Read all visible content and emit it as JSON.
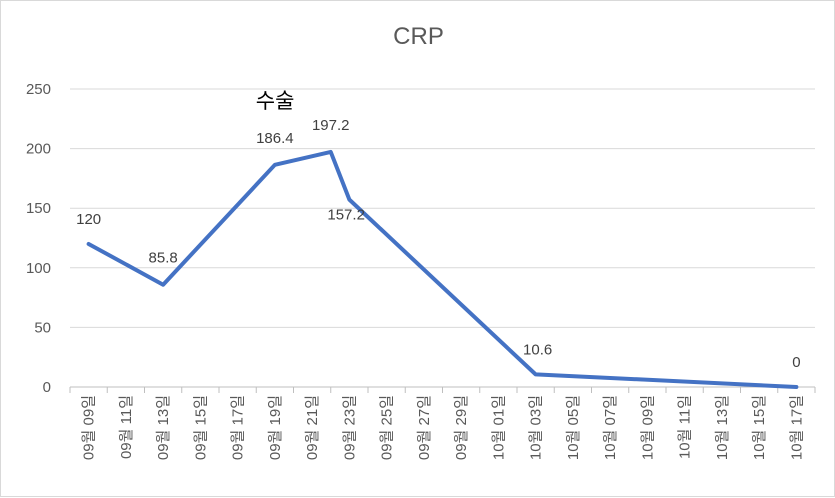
{
  "chart_data": {
    "type": "line",
    "title": "CRP",
    "xlabel": "",
    "ylabel": "",
    "ylim": [
      0,
      250
    ],
    "yticks": [
      0,
      50,
      100,
      150,
      200,
      250
    ],
    "grid": "horizontal",
    "legend": "none",
    "categories": [
      "09월 09일",
      "09월 11일",
      "09월 13일",
      "09월 15일",
      "09월 17일",
      "09월 19일",
      "09월 21일",
      "09월 23일",
      "09월 25일",
      "09월 27일",
      "09월 29일",
      "10월 01일",
      "10월 03일",
      "10월 05일",
      "10월 07일",
      "10월 09일",
      "10월 11일",
      "10월 13일",
      "10월 15일",
      "10월 17일"
    ],
    "series": [
      {
        "color": "#4472c4",
        "points": [
          {
            "x": "09월 09일",
            "y": 120,
            "label": "120"
          },
          {
            "x": "09월 13일",
            "y": 85.8,
            "label": "85.8"
          },
          {
            "x": "09월 19일",
            "y": 186.4,
            "label": "186.4"
          },
          {
            "x": "09월 22일",
            "y": 197.2,
            "label": "197.2"
          },
          {
            "x": "09월 23일",
            "y": 157.2,
            "label": "157.2"
          },
          {
            "x": "10월 03일",
            "y": 10.6,
            "label": "10.6"
          },
          {
            "x": "10월 17일",
            "y": 0,
            "label": "0"
          }
        ]
      }
    ],
    "annotations": [
      {
        "text": "수술",
        "near": "09월 21일"
      }
    ]
  }
}
